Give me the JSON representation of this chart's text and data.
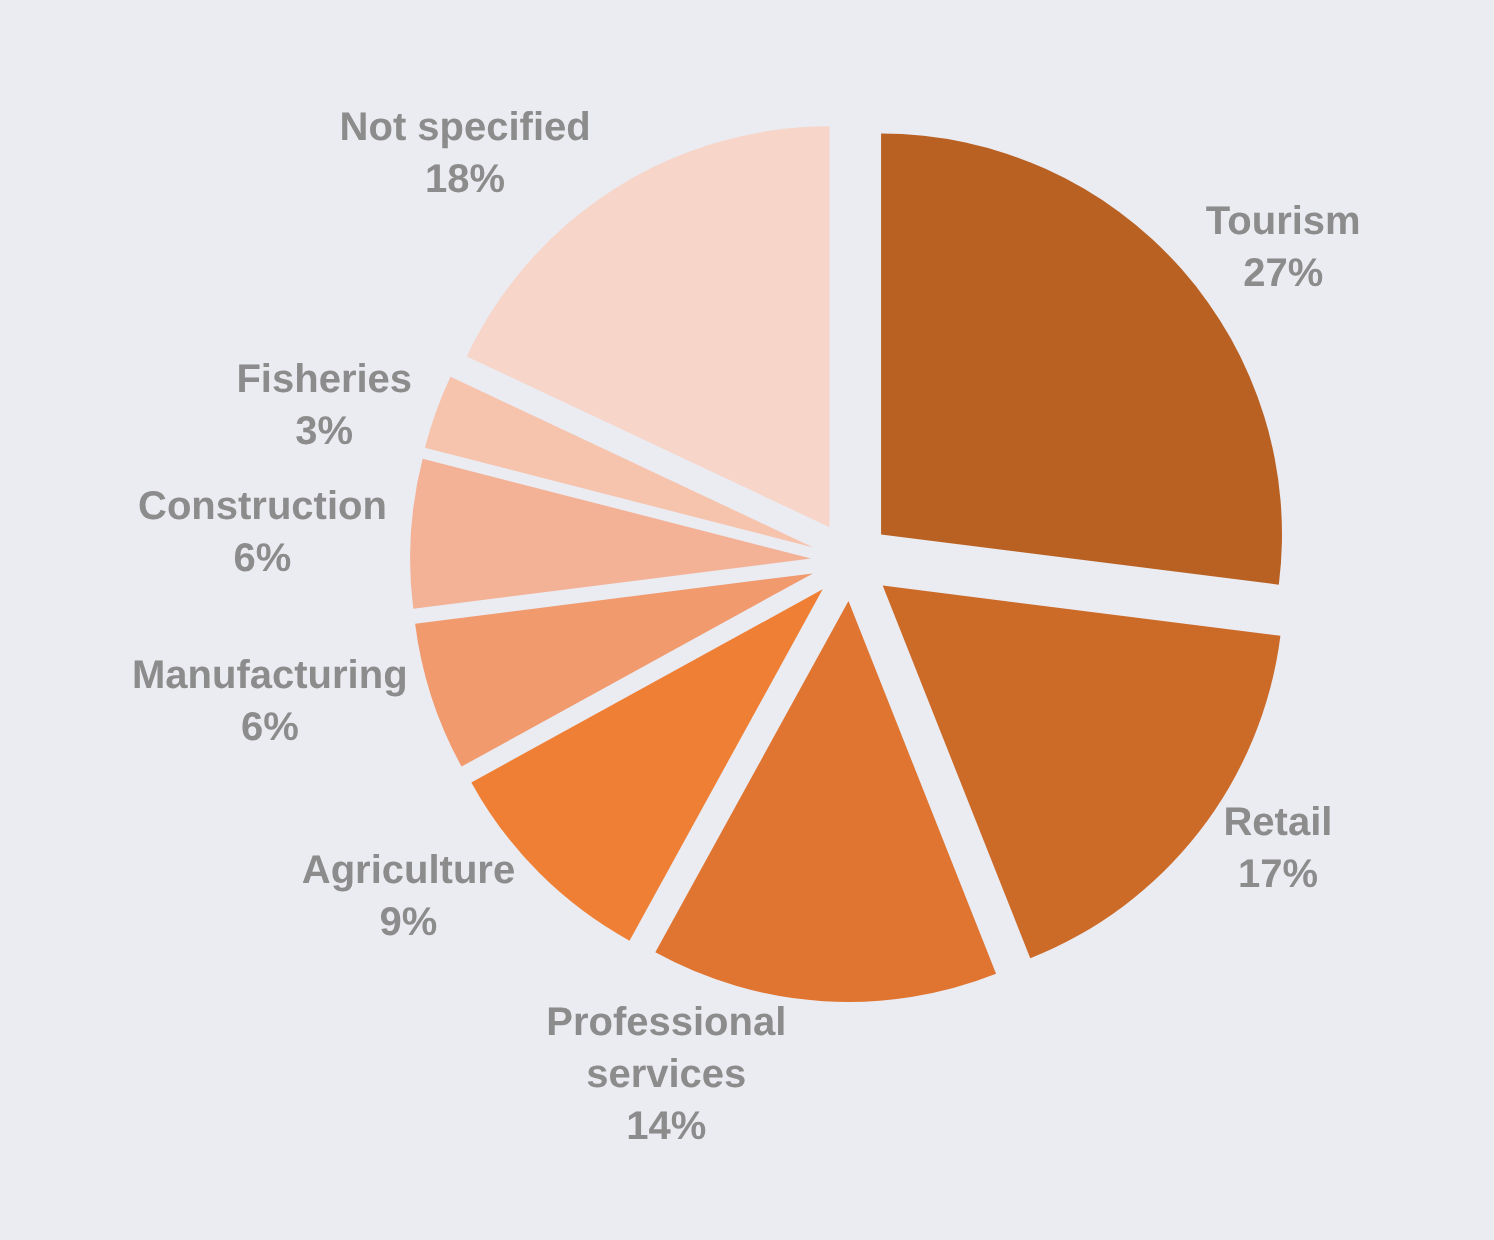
{
  "chart_data": {
    "type": "pie",
    "categories": [
      "Tourism",
      "Retail",
      "Professional services",
      "Agriculture",
      "Manufacturing",
      "Construction",
      "Fisheries",
      "Not specified"
    ],
    "values": [
      27,
      17,
      14,
      9,
      6,
      6,
      3,
      18
    ],
    "colors": [
      "#b86122",
      "#cc6a28",
      "#df7530",
      "#ee7f34",
      "#f09a6e",
      "#f3b196",
      "#f6c3ad",
      "#f7d5c8"
    ],
    "value_labels": [
      "27%",
      "17%",
      "14%",
      "9%",
      "6%",
      "6%",
      "3%",
      "18%"
    ],
    "legend": false
  }
}
